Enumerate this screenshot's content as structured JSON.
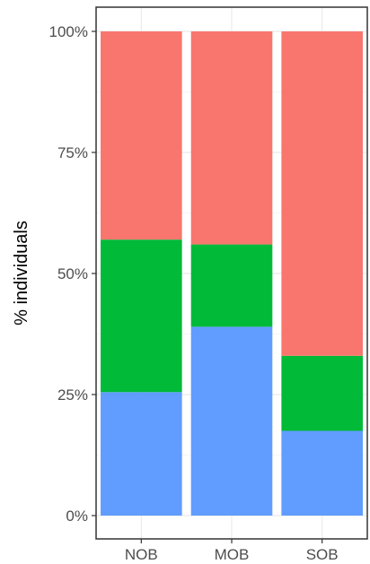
{
  "chart_data": {
    "type": "bar",
    "stacked": true,
    "categories": [
      "NOB",
      "MOB",
      "SOB"
    ],
    "series": [
      {
        "color": "#619CFF",
        "values": [
          25.5,
          39.0,
          17.5
        ]
      },
      {
        "color": "#00BA38",
        "values": [
          31.5,
          17.0,
          15.5
        ]
      },
      {
        "color": "#F8766D",
        "values": [
          43.0,
          44.0,
          67.0
        ]
      }
    ],
    "ylabel": "% individuals",
    "xlabel": "",
    "ylim": [
      0,
      100
    ],
    "yticks": [
      0,
      25,
      50,
      75,
      100
    ],
    "ytick_labels": [
      "0%",
      "25%",
      "50%",
      "75%",
      "100%"
    ],
    "grid": true,
    "legend": "none"
  },
  "colors": {
    "grid_major": "#ebebeb",
    "grid_minor": "#f5f5f5",
    "axis": "#333333",
    "tick_text": "#4d4d4d"
  }
}
